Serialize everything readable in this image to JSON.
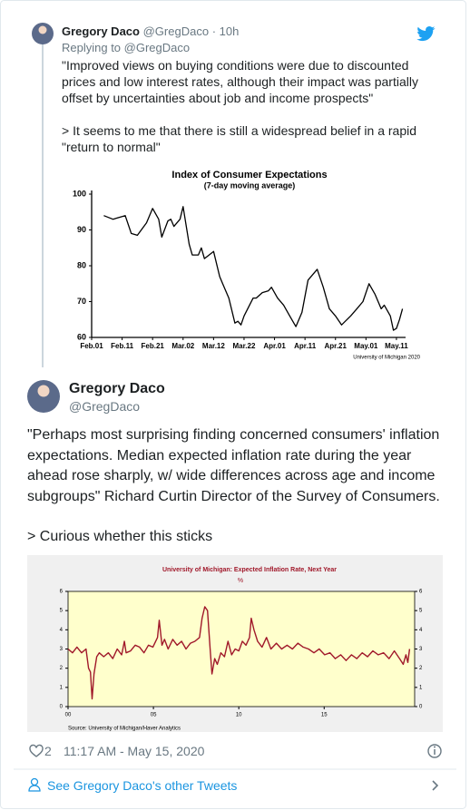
{
  "quoted_tweet": {
    "author": "Gregory Daco",
    "handle": "@GregDaco",
    "separator": "·",
    "time": "10h",
    "replying_label": "Replying to",
    "replying_handle": "@GregDaco",
    "paragraphs": [
      "\"Improved views on buying conditions were due to discounted prices and low interest rates, although their impact was partially offset by uncertainties about job and income prospects\"",
      "> It seems to me that there is still a widespread belief in a rapid \"return to normal\""
    ],
    "chart_data": {
      "type": "line",
      "title": "Index of Consumer Expectations",
      "subtitle": "(7-day moving average)",
      "source": "University of Michigan 2020",
      "color": "#000000",
      "x": [
        4,
        7,
        11,
        13,
        15,
        18,
        20,
        22,
        23,
        25,
        26,
        27,
        29,
        30,
        32,
        33,
        35,
        36,
        37,
        40,
        42,
        43,
        45,
        47,
        48,
        49,
        50,
        53,
        54,
        56,
        58,
        59,
        61,
        63,
        65,
        67,
        69,
        71,
        74,
        76,
        78,
        80,
        82,
        85,
        87,
        89,
        91,
        93,
        95,
        96,
        98,
        99,
        100,
        101,
        102
      ],
      "values": [
        94,
        93,
        94,
        89,
        88.5,
        92,
        96,
        93,
        88,
        92.5,
        93,
        91,
        93,
        96.5,
        86,
        83,
        83,
        85,
        82,
        84,
        77,
        75,
        71,
        64,
        64.5,
        63.5,
        66,
        71,
        71,
        72.5,
        73,
        74,
        71,
        69,
        66,
        63,
        67,
        76,
        79,
        74,
        68,
        66,
        63.5,
        66,
        68,
        70,
        75,
        72,
        68,
        69,
        66,
        62,
        62.5,
        65,
        68
      ],
      "xlim": [
        0,
        103
      ],
      "xticks": [
        {
          "value": 0,
          "label": "Feb.01"
        },
        {
          "value": 10,
          "label": "Feb.11"
        },
        {
          "value": 20,
          "label": "Feb.21"
        },
        {
          "value": 30,
          "label": "Mar.02"
        },
        {
          "value": 40,
          "label": "Mar.12"
        },
        {
          "value": 50,
          "label": "Mar.22"
        },
        {
          "value": 60,
          "label": "Apr.01"
        },
        {
          "value": 70,
          "label": "Apr.11"
        },
        {
          "value": 80,
          "label": "Apr.21"
        },
        {
          "value": 90,
          "label": "May.01"
        },
        {
          "value": 100,
          "label": "May.11"
        }
      ],
      "ylim": [
        60,
        100
      ],
      "yticks": [
        60,
        70,
        80,
        90,
        100
      ]
    }
  },
  "tweet": {
    "author": "Gregory Daco",
    "handle": "@GregDaco",
    "paragraphs": [
      "\"Perhaps most surprising finding concerned consumers' inflation expectations. Median expected inflation rate during the year ahead rose sharply, w/ wide differences across age and income subgroups\" Richard Curtin Director of the Survey of Consumers.",
      "> Curious whether this sticks"
    ],
    "chart_data": {
      "type": "line",
      "title": "University of Michigan: Expected Inflation Rate, Next Year",
      "unit": "%",
      "source": "Source:  University of Michigan/Haver Analytics",
      "color": "#a0182a",
      "plot_background": "#ffffcc",
      "x": [
        2000.0,
        2000.26,
        2000.52,
        2000.79,
        2001.05,
        2001.2,
        2001.31,
        2001.41,
        2001.52,
        2001.68,
        2001.83,
        2002.09,
        2002.36,
        2002.62,
        2002.88,
        2003.14,
        2003.3,
        2003.4,
        2003.66,
        2003.93,
        2004.19,
        2004.45,
        2004.71,
        2004.97,
        2005.24,
        2005.34,
        2005.5,
        2005.65,
        2005.86,
        2006.13,
        2006.39,
        2006.65,
        2006.91,
        2007.17,
        2007.43,
        2007.7,
        2007.85,
        2008.01,
        2008.17,
        2008.32,
        2008.43,
        2008.59,
        2008.74,
        2008.95,
        2009.16,
        2009.37,
        2009.58,
        2009.79,
        2010.0,
        2010.21,
        2010.42,
        2010.63,
        2010.73,
        2010.89,
        2011.1,
        2011.36,
        2011.62,
        2011.88,
        2012.2,
        2012.51,
        2012.83,
        2013.14,
        2013.46,
        2013.77,
        2014.08,
        2014.4,
        2014.71,
        2015.03,
        2015.34,
        2015.65,
        2015.97,
        2016.28,
        2016.6,
        2016.91,
        2017.23,
        2017.54,
        2017.85,
        2018.17,
        2018.48,
        2018.8,
        2019.11,
        2019.42,
        2019.63,
        2019.79,
        2019.9,
        2020.0
      ],
      "values": [
        3.0,
        2.8,
        3.1,
        2.8,
        3.0,
        2.0,
        1.8,
        0.4,
        1.7,
        2.6,
        2.8,
        2.6,
        2.8,
        2.5,
        3.0,
        2.7,
        3.4,
        2.8,
        2.9,
        3.2,
        3.1,
        2.8,
        3.2,
        3.1,
        3.6,
        4.5,
        3.2,
        3.5,
        3.0,
        3.5,
        3.2,
        3.4,
        3.0,
        3.3,
        3.4,
        3.6,
        4.6,
        5.2,
        5.0,
        3.0,
        1.7,
        2.5,
        2.2,
        2.8,
        2.6,
        3.4,
        2.7,
        3.0,
        2.9,
        3.4,
        3.2,
        3.6,
        4.6,
        4.0,
        3.4,
        3.1,
        3.6,
        3.0,
        3.3,
        3.0,
        3.2,
        3.0,
        3.3,
        3.1,
        3.0,
        2.8,
        3.0,
        2.7,
        2.8,
        2.5,
        2.7,
        2.4,
        2.7,
        2.5,
        2.8,
        2.6,
        2.9,
        2.7,
        2.8,
        2.5,
        2.9,
        2.5,
        2.2,
        2.7,
        2.3,
        3.0
      ],
      "xlim": [
        2000,
        2020.3
      ],
      "xticks": [
        {
          "value": 2000,
          "label": "00"
        },
        {
          "value": 2005,
          "label": "05"
        },
        {
          "value": 2010,
          "label": "10"
        },
        {
          "value": 2015,
          "label": "15"
        }
      ],
      "ylim": [
        0,
        6
      ],
      "yticks": [
        0,
        1,
        2,
        3,
        4,
        5,
        6
      ],
      "y2lim": [
        0,
        6
      ],
      "y2ticks": [
        0,
        1,
        2,
        3,
        4,
        5,
        6
      ]
    },
    "likes": "2",
    "timestamp": "11:17 AM - May 15, 2020"
  },
  "footer": {
    "link": "See Gregory Daco's other Tweets"
  }
}
